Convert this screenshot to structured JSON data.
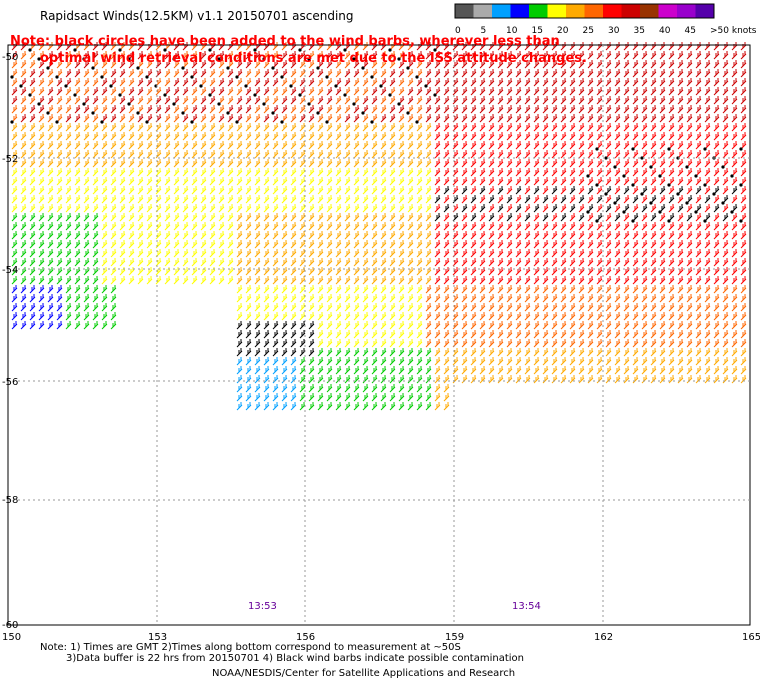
{
  "title": "Rapidsact Winds(12.5KM) v1.1 20150701 ascending",
  "note_line1": "Note: black circles have been added to the wind barbs, wherever less than",
  "note_line2": "optimal wind retrieval conditions are met due to the ISS attitude changes.",
  "legend": {
    "labels": [
      "0",
      "5",
      "10",
      "15",
      "20",
      "25",
      "30",
      "35",
      "40",
      "45",
      ">50 knots"
    ],
    "colors": [
      "#555555",
      "#aaaaaa",
      "#00a0ff",
      "#0000ff",
      "#00cc00",
      "#ffff00",
      "#ffaa00",
      "#ff6600",
      "#ff0000",
      "#cc0000",
      "#993300",
      "#cc00cc",
      "#9900cc",
      "#5500aa"
    ]
  },
  "lat_labels": [
    "-50",
    "-52",
    "-54",
    "-56",
    "-58",
    "-60"
  ],
  "lon_labels": [
    "150",
    "153",
    "156",
    "159",
    "162",
    "165"
  ],
  "time_labels": [
    "13:53",
    "13:54"
  ],
  "footer_line1": "Note: 1) Times are GMT 2)Times along bottom correspond to measurement at ~50S",
  "footer_line2": "3)Data buffer is 22 hrs from 20150701 4) Black wind barbs indicate possible contamination",
  "credit": "NOAA/NESDIS/Center for Satellite Applications and Research",
  "colors": {
    "note": "#ff0000",
    "time": "#660099",
    "grid": "#888888"
  }
}
